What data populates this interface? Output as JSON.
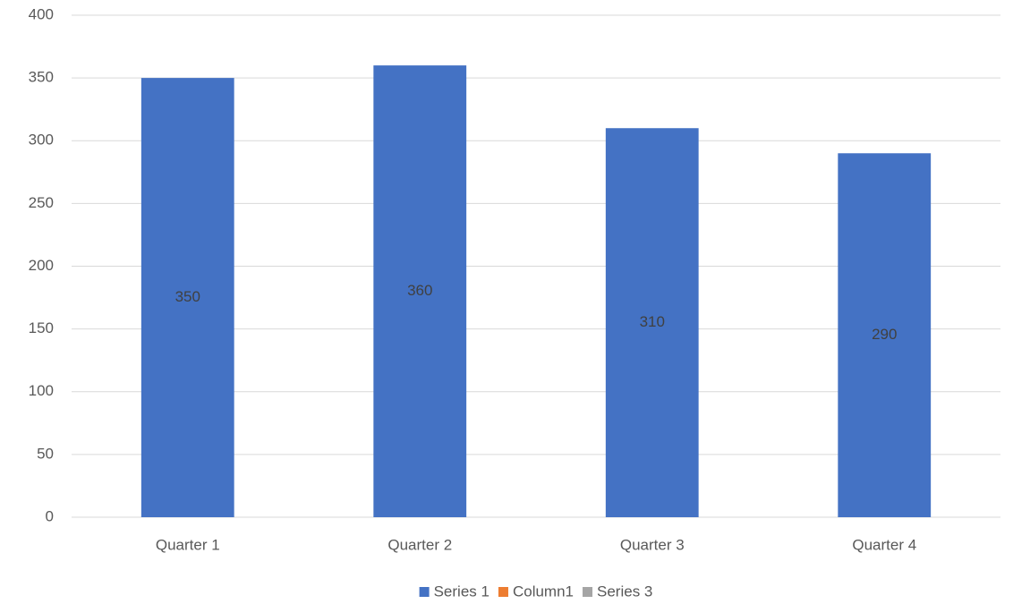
{
  "chart_data": {
    "type": "bar",
    "categories": [
      "Quarter 1",
      "Quarter 2",
      "Quarter 3",
      "Quarter 4"
    ],
    "series": [
      {
        "name": "Series 1",
        "color": "#4472c4",
        "values": [
          350,
          360,
          310,
          290
        ]
      },
      {
        "name": "Column1",
        "color": "#ed7d31",
        "values": [
          null,
          null,
          null,
          null
        ]
      },
      {
        "name": "Series 3",
        "color": "#a5a5a5",
        "values": [
          null,
          null,
          null,
          null
        ]
      }
    ],
    "ylim": [
      0,
      400
    ],
    "yticks": [
      0,
      50,
      100,
      150,
      200,
      250,
      300,
      350,
      400
    ],
    "grid": true,
    "legend": "bottom",
    "data_labels": true
  }
}
